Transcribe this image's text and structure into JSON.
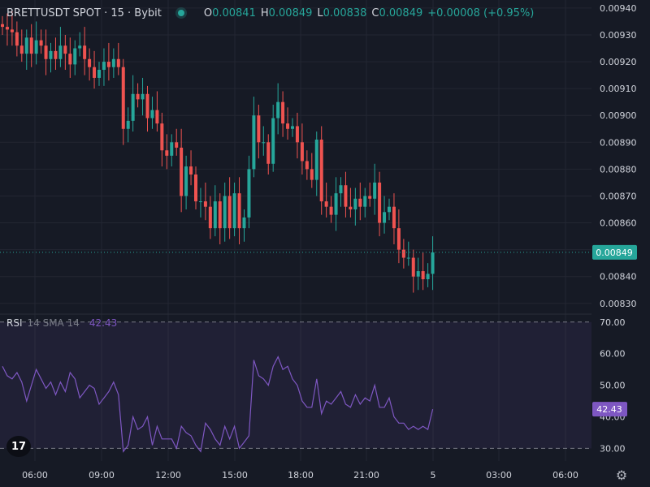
{
  "header": {
    "symbol": "BRETTUSDT SPOT · 15 · Bybit",
    "open_label": "O",
    "open": "0.00841",
    "high_label": "H",
    "high": "0.00849",
    "low_label": "L",
    "low": "0.00838",
    "close_label": "C",
    "close": "0.00849",
    "change": "+0.00008 (+0.95%)"
  },
  "colors": {
    "up": "#26a69a",
    "down": "#ef5350",
    "rsi": "#7e57c2",
    "background": "#161a25",
    "grid": "#232632",
    "axis_text": "#d1d4dc"
  },
  "chart_data": [
    {
      "type": "candlestick",
      "title": "BRETTUSDT SPOT · 15 · Bybit",
      "ylim": [
        0.00826,
        0.00943
      ],
      "y_ticks": [
        "0.00940",
        "0.00930",
        "0.00920",
        "0.00910",
        "0.00900",
        "0.00890",
        "0.00880",
        "0.00870",
        "0.00860",
        "0.00850",
        "0.00840",
        "0.00830"
      ],
      "x_ticks": [
        "06:00",
        "09:00",
        "12:00",
        "15:00",
        "18:00",
        "21:00",
        "5",
        "03:00",
        "06:00"
      ],
      "last_price_label": "0.00849",
      "last_price": 0.00849,
      "closes": [
        0.00933,
        0.00932,
        0.00931,
        0.00926,
        0.00923,
        0.00929,
        0.00923,
        0.00928,
        0.00926,
        0.00921,
        0.00924,
        0.00921,
        0.00926,
        0.00923,
        0.00919,
        0.00925,
        0.00926,
        0.00921,
        0.00918,
        0.00914,
        0.00917,
        0.0092,
        0.00918,
        0.00921,
        0.00918,
        0.00895,
        0.00898,
        0.00908,
        0.00906,
        0.00908,
        0.00899,
        0.00902,
        0.00897,
        0.00887,
        0.00885,
        0.0089,
        0.00888,
        0.0087,
        0.00881,
        0.00878,
        0.00868,
        0.00868,
        0.00866,
        0.00858,
        0.00868,
        0.00858,
        0.0087,
        0.00858,
        0.00871,
        0.00858,
        0.00862,
        0.0088,
        0.009,
        0.0089,
        0.0089,
        0.00882,
        0.00899,
        0.00905,
        0.00897,
        0.00895,
        0.00896,
        0.0089,
        0.00883,
        0.0088,
        0.00876,
        0.00891,
        0.00868,
        0.00866,
        0.00863,
        0.00871,
        0.00874,
        0.00866,
        0.00865,
        0.00869,
        0.00866,
        0.0087,
        0.00869,
        0.00875,
        0.0086,
        0.00864,
        0.00866,
        0.00858,
        0.0085,
        0.00847,
        0.00847,
        0.0084,
        0.00842,
        0.00839,
        0.00841,
        0.00849
      ],
      "opens": [
        0.00934,
        0.00933,
        0.00932,
        0.00931,
        0.00926,
        0.00923,
        0.00929,
        0.00923,
        0.00928,
        0.00926,
        0.00921,
        0.00924,
        0.00921,
        0.00926,
        0.00923,
        0.00919,
        0.00925,
        0.00926,
        0.00921,
        0.00918,
        0.00914,
        0.00917,
        0.0092,
        0.00918,
        0.00921,
        0.00918,
        0.00895,
        0.00898,
        0.00908,
        0.00906,
        0.00908,
        0.00899,
        0.00902,
        0.00897,
        0.00887,
        0.00885,
        0.0089,
        0.00888,
        0.0087,
        0.00881,
        0.00878,
        0.00868,
        0.00868,
        0.00866,
        0.00858,
        0.00868,
        0.00858,
        0.0087,
        0.00858,
        0.00871,
        0.00858,
        0.00862,
        0.0088,
        0.009,
        0.0089,
        0.0089,
        0.00882,
        0.00899,
        0.00905,
        0.00897,
        0.00895,
        0.00896,
        0.0089,
        0.00883,
        0.0088,
        0.00876,
        0.00891,
        0.00868,
        0.00866,
        0.00863,
        0.00871,
        0.00874,
        0.00866,
        0.00865,
        0.00869,
        0.00866,
        0.0087,
        0.00869,
        0.00875,
        0.0086,
        0.00864,
        0.00866,
        0.00858,
        0.0085,
        0.00847,
        0.00847,
        0.0084,
        0.00842,
        0.00839,
        0.00841
      ]
    },
    {
      "type": "line",
      "title": "RSI",
      "params": "14 SMA 14",
      "value_label": "42.43",
      "ylim": [
        26,
        72
      ],
      "y_ticks": [
        "70.00",
        "60.00",
        "50.00",
        "40.00",
        "30.00"
      ],
      "bands": [
        30,
        70
      ],
      "values": [
        56,
        53,
        52,
        54,
        51,
        45,
        50,
        55,
        52,
        49,
        51,
        47,
        51,
        48,
        54,
        52,
        46,
        48,
        50,
        49,
        44,
        46,
        48,
        51,
        47,
        29,
        31,
        40,
        36,
        37,
        40,
        31,
        37,
        33,
        33,
        33,
        30,
        37,
        35,
        34,
        31,
        29,
        38,
        36,
        33,
        31,
        37,
        33,
        37,
        30,
        32,
        34,
        58,
        53,
        52,
        50,
        56,
        59,
        55,
        56,
        52,
        50,
        45,
        43,
        43,
        52,
        41,
        45,
        44,
        46,
        48,
        44,
        43,
        47,
        44,
        46,
        45,
        50,
        43,
        43,
        46,
        40,
        38,
        38,
        36,
        37,
        36,
        37,
        36,
        42.43
      ]
    }
  ]
}
